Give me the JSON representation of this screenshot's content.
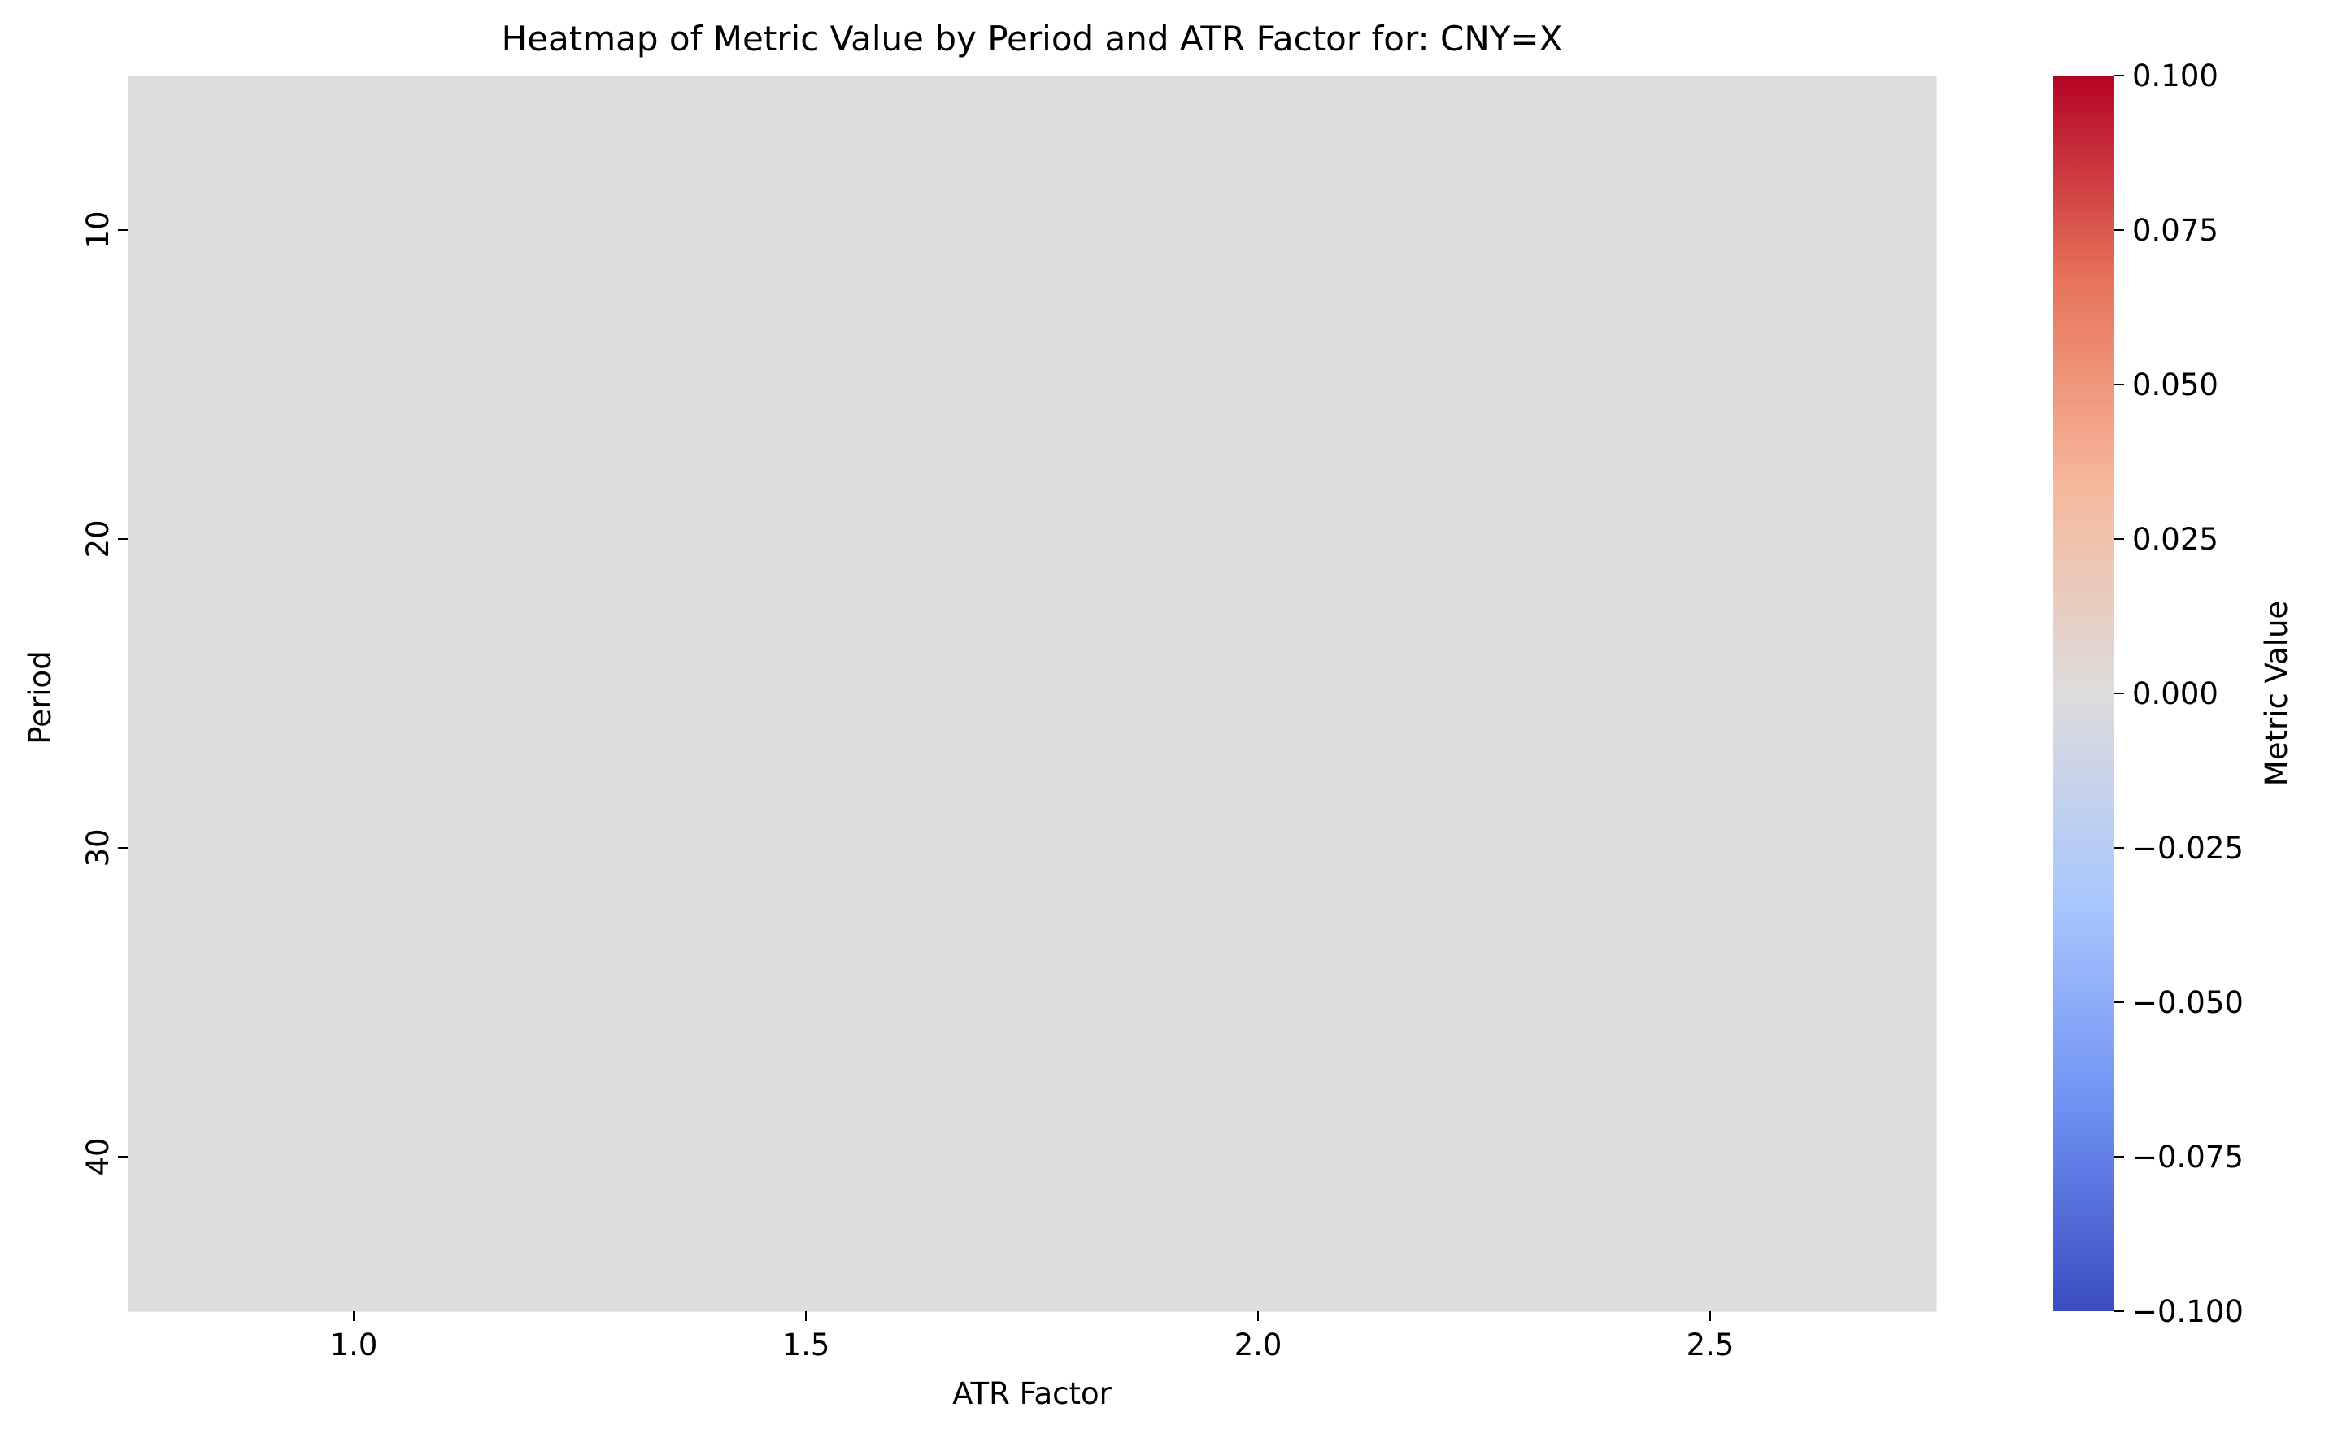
{
  "chart_data": {
    "type": "heatmap",
    "title": "Heatmap of Metric Value by Period and ATR Factor for: CNY=X",
    "xlabel": "ATR Factor",
    "ylabel": "Period",
    "x_ticks": [
      1.0,
      1.5,
      2.0,
      2.5
    ],
    "x_tick_labels": [
      "1.0",
      "1.5",
      "2.0",
      "2.5"
    ],
    "xlim": [
      0.75,
      2.75
    ],
    "y_ticks": [
      10,
      20,
      30,
      40
    ],
    "y_tick_labels": [
      "10",
      "20",
      "30",
      "40"
    ],
    "ylim": [
      5,
      45
    ],
    "y_inverted": true,
    "values": [
      [
        0,
        0,
        0,
        0
      ],
      [
        0,
        0,
        0,
        0
      ],
      [
        0,
        0,
        0,
        0
      ],
      [
        0,
        0,
        0,
        0
      ]
    ],
    "cell_color": "#dddddd",
    "grid": false,
    "colorbar": {
      "label": "Metric Value",
      "colormap": "coolwarm",
      "vmin": -0.1,
      "vmax": 0.1,
      "ticks": [
        0.1,
        0.075,
        0.05,
        0.025,
        0.0,
        -0.025,
        -0.05,
        -0.075,
        -0.1
      ],
      "tick_labels": [
        "0.100",
        "0.075",
        "0.050",
        "0.025",
        "0.000",
        "−0.025",
        "−0.050",
        "−0.075",
        "−0.100"
      ],
      "colors": [
        "#3b4cc0",
        "#6f92f3",
        "#aac7fd",
        "#dddcdc",
        "#f7b89c",
        "#e7745b",
        "#b40426"
      ]
    }
  }
}
